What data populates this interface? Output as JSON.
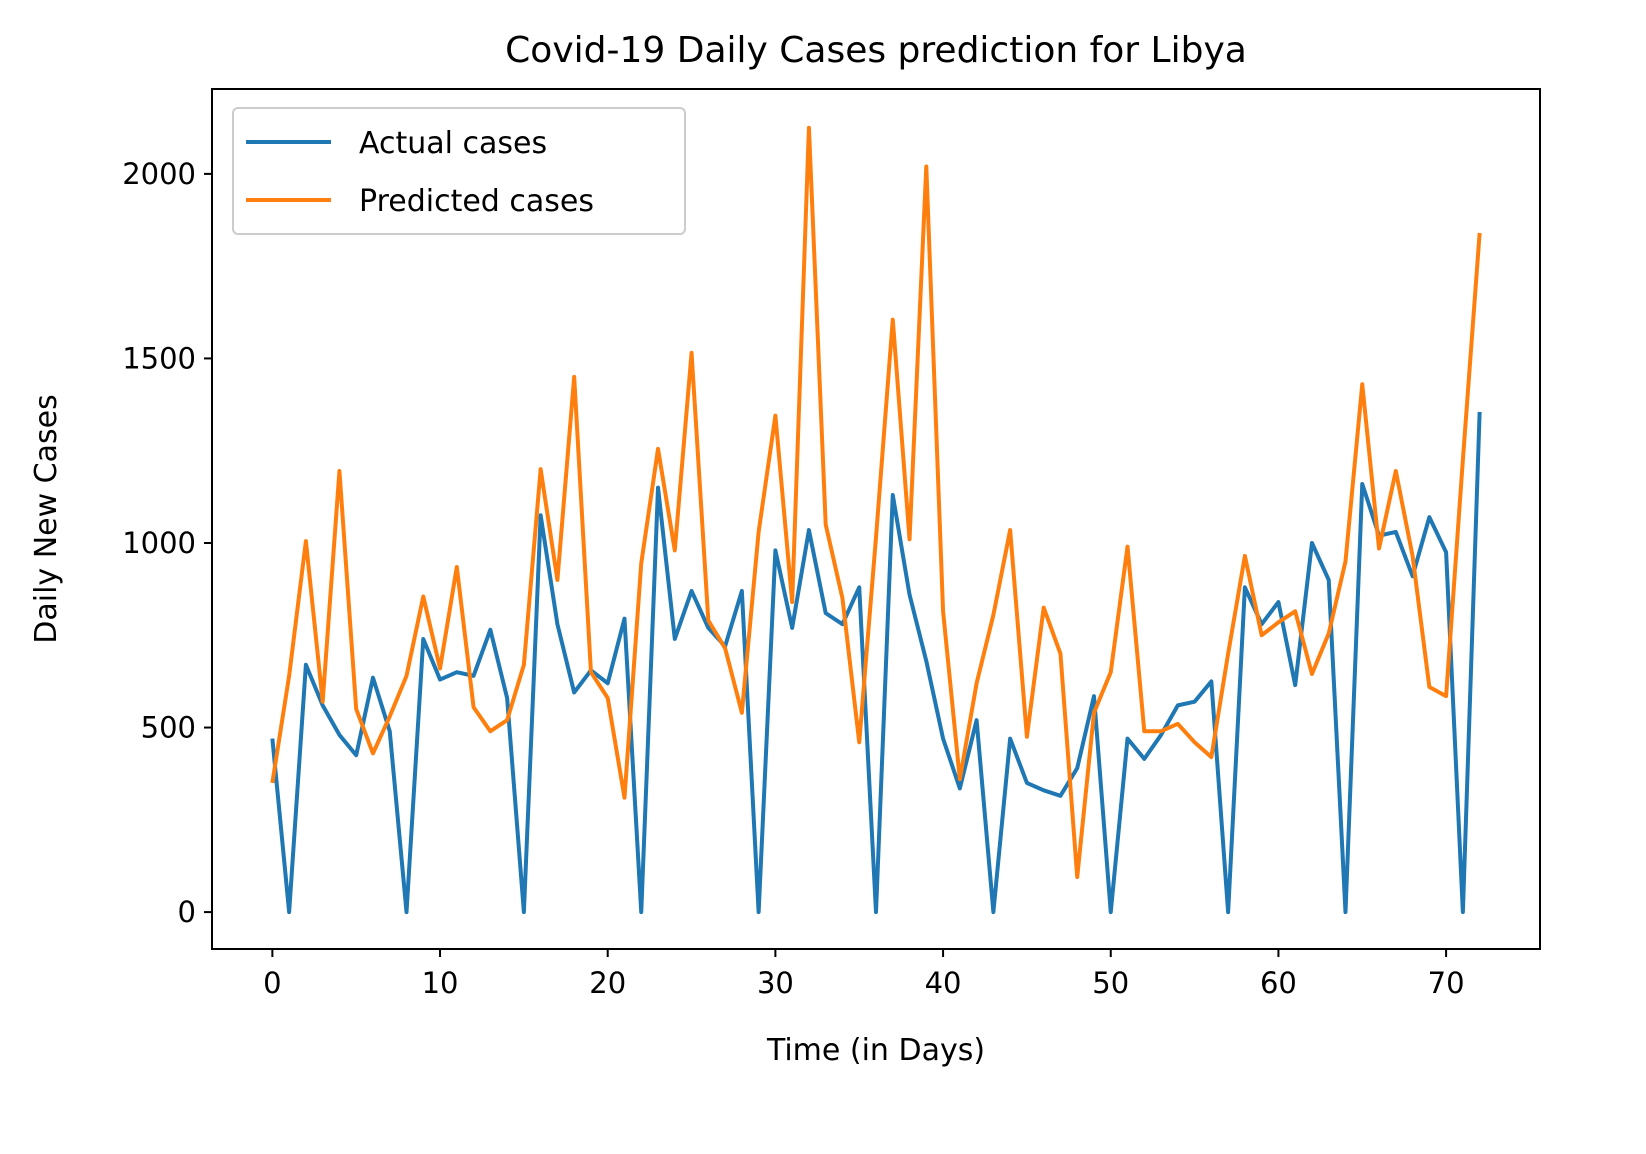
{
  "chart_data": {
    "type": "line",
    "title": "Covid-19 Daily Cases prediction for Libya",
    "xlabel": "Time (in Days)",
    "ylabel": "Daily New Cases",
    "xlim": [
      -3.6,
      75.6
    ],
    "ylim": [
      -100,
      2230
    ],
    "x_ticks": [
      0,
      10,
      20,
      30,
      40,
      50,
      60,
      70
    ],
    "y_ticks": [
      0,
      500,
      1000,
      1500,
      2000
    ],
    "grid": false,
    "legend_position": "upper-left",
    "x": [
      0,
      1,
      2,
      3,
      4,
      5,
      6,
      7,
      8,
      9,
      10,
      11,
      12,
      13,
      14,
      15,
      16,
      17,
      18,
      19,
      20,
      21,
      22,
      23,
      24,
      25,
      26,
      27,
      28,
      29,
      30,
      31,
      32,
      33,
      34,
      35,
      36,
      37,
      38,
      39,
      40,
      41,
      42,
      43,
      44,
      45,
      46,
      47,
      48,
      49,
      50,
      51,
      52,
      53,
      54,
      55,
      56,
      57,
      58,
      59,
      60,
      61,
      62,
      63,
      64,
      65,
      66,
      67,
      68,
      69,
      70,
      71,
      72
    ],
    "series": [
      {
        "name": "Actual cases",
        "color": "#1f77b4",
        "values": [
          470,
          0,
          670,
          560,
          480,
          425,
          635,
          490,
          0,
          740,
          630,
          650,
          640,
          765,
          580,
          0,
          1075,
          780,
          595,
          655,
          620,
          795,
          0,
          1150,
          740,
          870,
          770,
          720,
          870,
          0,
          980,
          770,
          1035,
          810,
          780,
          880,
          0,
          1130,
          860,
          680,
          470,
          335,
          520,
          0,
          470,
          350,
          330,
          315,
          390,
          585,
          0,
          470,
          415,
          480,
          560,
          570,
          625,
          0,
          880,
          780,
          840,
          615,
          1000,
          900,
          0,
          1160,
          1020,
          1030,
          910,
          1070,
          975,
          0,
          1355
        ]
      },
      {
        "name": "Predicted cases",
        "color": "#ff7f0e",
        "values": [
          350,
          640,
          1005,
          570,
          1195,
          550,
          430,
          530,
          640,
          855,
          660,
          935,
          555,
          490,
          520,
          670,
          1200,
          900,
          1450,
          650,
          580,
          310,
          945,
          1255,
          980,
          1515,
          790,
          715,
          540,
          1030,
          1345,
          840,
          2125,
          1050,
          850,
          460,
          1015,
          1605,
          1010,
          2020,
          815,
          360,
          620,
          805,
          1035,
          475,
          825,
          700,
          95,
          540,
          650,
          990,
          490,
          490,
          510,
          460,
          420,
          700,
          965,
          750,
          785,
          815,
          645,
          755,
          950,
          1430,
          985,
          1195,
          965,
          610,
          585,
          1225,
          1840
        ]
      }
    ]
  }
}
